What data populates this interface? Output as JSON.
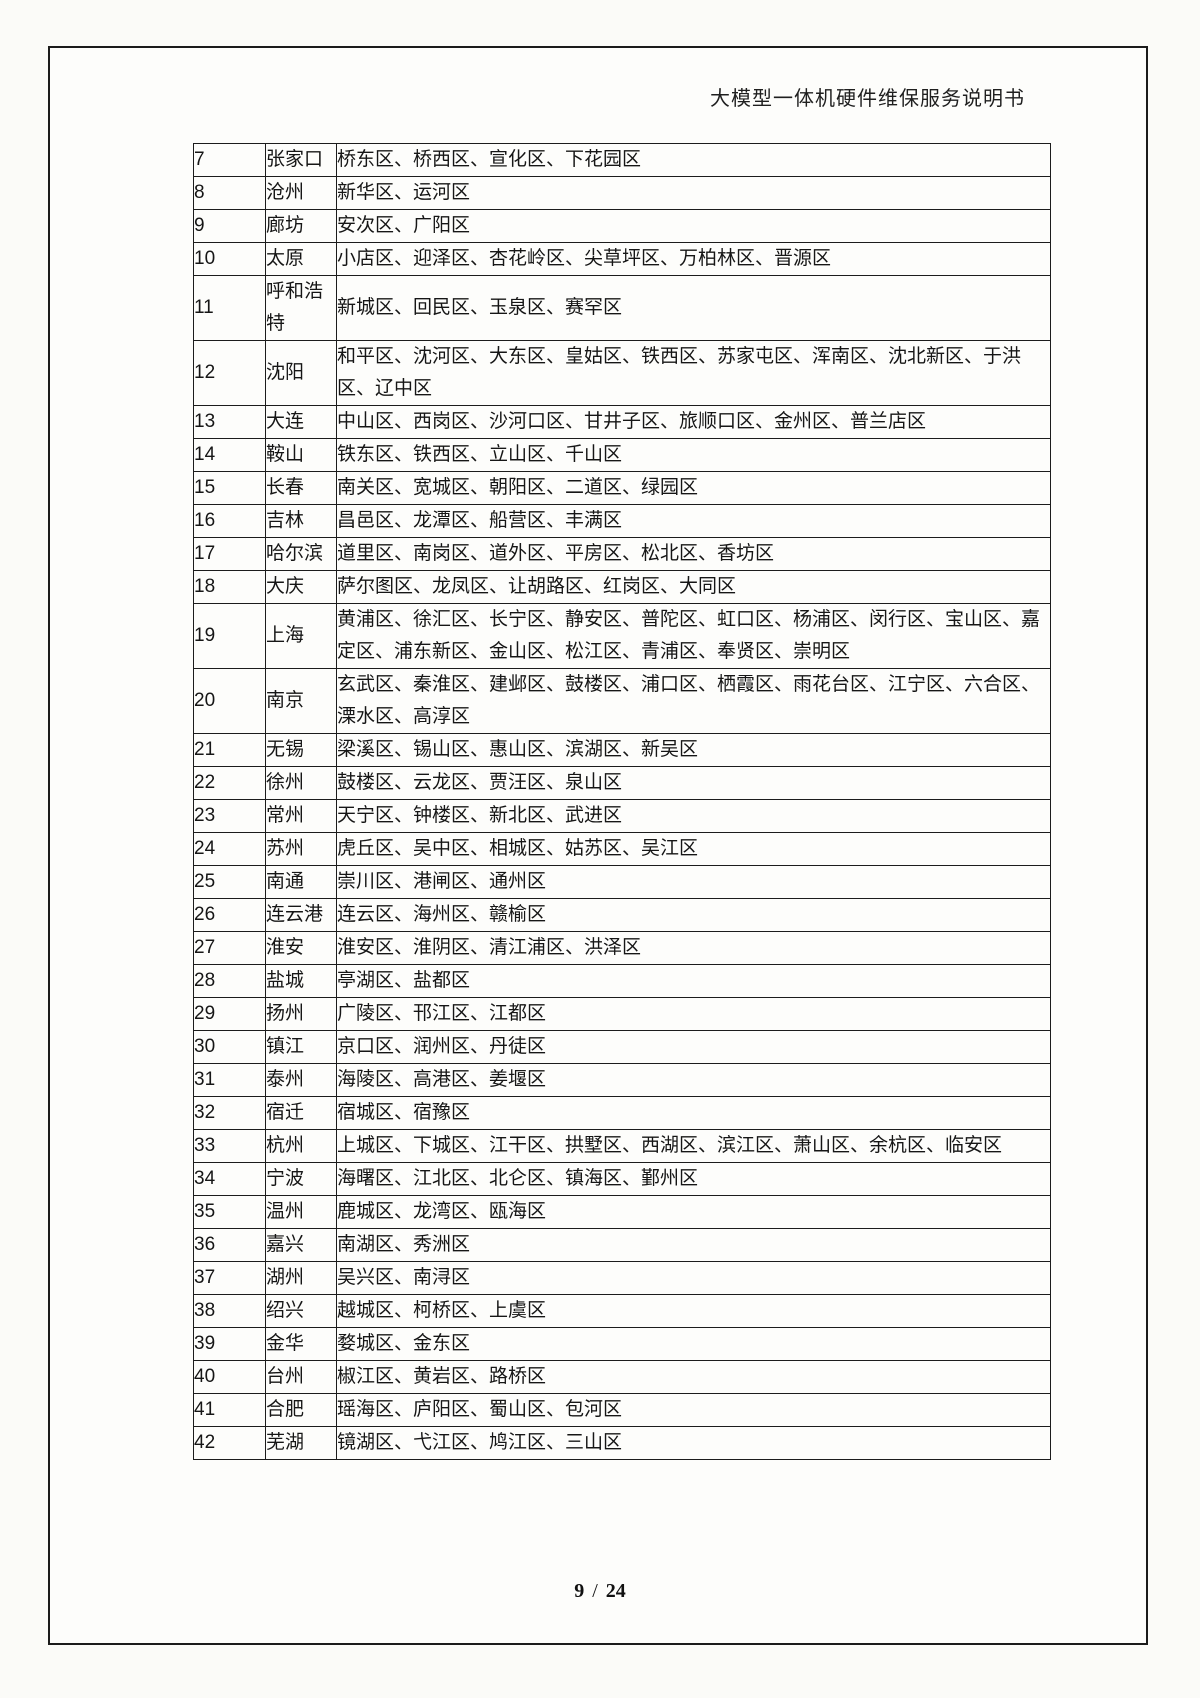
{
  "header": {
    "title": "大模型一体机硬件维保服务说明书"
  },
  "footer": {
    "current_page": "9",
    "divider": "/",
    "total_pages": "24"
  },
  "table": {
    "rows": [
      {
        "no": "7",
        "city": "张家口",
        "districts": "桥东区、桥西区、宣化区、下花园区"
      },
      {
        "no": "8",
        "city": "沧州",
        "districts": "新华区、运河区"
      },
      {
        "no": "9",
        "city": "廊坊",
        "districts": "安次区、广阳区"
      },
      {
        "no": "10",
        "city": "太原",
        "districts": "小店区、迎泽区、杏花岭区、尖草坪区、万柏林区、晋源区"
      },
      {
        "no": "11",
        "city": "呼和浩特",
        "districts": "新城区、回民区、玉泉区、赛罕区"
      },
      {
        "no": "12",
        "city": "沈阳",
        "districts": "和平区、沈河区、大东区、皇姑区、铁西区、苏家屯区、浑南区、沈北新区、于洪区、辽中区"
      },
      {
        "no": "13",
        "city": "大连",
        "districts": "中山区、西岗区、沙河口区、甘井子区、旅顺口区、金州区、普兰店区"
      },
      {
        "no": "14",
        "city": "鞍山",
        "districts": "铁东区、铁西区、立山区、千山区"
      },
      {
        "no": "15",
        "city": "长春",
        "districts": "南关区、宽城区、朝阳区、二道区、绿园区"
      },
      {
        "no": "16",
        "city": "吉林",
        "districts": "昌邑区、龙潭区、船营区、丰满区"
      },
      {
        "no": "17",
        "city": "哈尔滨",
        "districts": "道里区、南岗区、道外区、平房区、松北区、香坊区"
      },
      {
        "no": "18",
        "city": "大庆",
        "districts": "萨尔图区、龙凤区、让胡路区、红岗区、大同区"
      },
      {
        "no": "19",
        "city": "上海",
        "districts": "黄浦区、徐汇区、长宁区、静安区、普陀区、虹口区、杨浦区、闵行区、宝山区、嘉定区、浦东新区、金山区、松江区、青浦区、奉贤区、崇明区"
      },
      {
        "no": "20",
        "city": "南京",
        "districts": "玄武区、秦淮区、建邺区、鼓楼区、浦口区、栖霞区、雨花台区、江宁区、六合区、溧水区、高淳区"
      },
      {
        "no": "21",
        "city": "无锡",
        "districts": "梁溪区、锡山区、惠山区、滨湖区、新吴区"
      },
      {
        "no": "22",
        "city": "徐州",
        "districts": "鼓楼区、云龙区、贾汪区、泉山区"
      },
      {
        "no": "23",
        "city": "常州",
        "districts": "天宁区、钟楼区、新北区、武进区"
      },
      {
        "no": "24",
        "city": "苏州",
        "districts": "虎丘区、吴中区、相城区、姑苏区、吴江区"
      },
      {
        "no": "25",
        "city": "南通",
        "districts": "崇川区、港闸区、通州区"
      },
      {
        "no": "26",
        "city": "连云港",
        "districts": "连云区、海州区、赣榆区"
      },
      {
        "no": "27",
        "city": "淮安",
        "districts": "淮安区、淮阴区、清江浦区、洪泽区"
      },
      {
        "no": "28",
        "city": "盐城",
        "districts": "亭湖区、盐都区"
      },
      {
        "no": "29",
        "city": "扬州",
        "districts": "广陵区、邗江区、江都区"
      },
      {
        "no": "30",
        "city": "镇江",
        "districts": "京口区、润州区、丹徒区"
      },
      {
        "no": "31",
        "city": "泰州",
        "districts": "海陵区、高港区、姜堰区"
      },
      {
        "no": "32",
        "city": "宿迁",
        "districts": "宿城区、宿豫区"
      },
      {
        "no": "33",
        "city": "杭州",
        "districts": "上城区、下城区、江干区、拱墅区、西湖区、滨江区、萧山区、余杭区、临安区"
      },
      {
        "no": "34",
        "city": "宁波",
        "districts": "海曙区、江北区、北仑区、镇海区、鄞州区"
      },
      {
        "no": "35",
        "city": "温州",
        "districts": "鹿城区、龙湾区、瓯海区"
      },
      {
        "no": "36",
        "city": "嘉兴",
        "districts": "南湖区、秀洲区"
      },
      {
        "no": "37",
        "city": "湖州",
        "districts": "吴兴区、南浔区"
      },
      {
        "no": "38",
        "city": "绍兴",
        "districts": "越城区、柯桥区、上虞区"
      },
      {
        "no": "39",
        "city": "金华",
        "districts": "婺城区、金东区"
      },
      {
        "no": "40",
        "city": "台州",
        "districts": "椒江区、黄岩区、路桥区"
      },
      {
        "no": "41",
        "city": "合肥",
        "districts": "瑶海区、庐阳区、蜀山区、包河区"
      },
      {
        "no": "42",
        "city": "芜湖",
        "districts": "镜湖区、弋江区、鸠江区、三山区"
      }
    ]
  }
}
